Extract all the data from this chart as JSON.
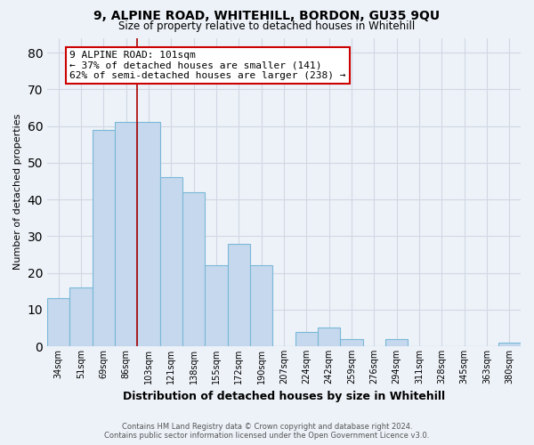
{
  "title": "9, ALPINE ROAD, WHITEHILL, BORDON, GU35 9QU",
  "subtitle": "Size of property relative to detached houses in Whitehill",
  "xlabel": "Distribution of detached houses by size in Whitehill",
  "ylabel": "Number of detached properties",
  "bin_labels": [
    "34sqm",
    "51sqm",
    "69sqm",
    "86sqm",
    "103sqm",
    "121sqm",
    "138sqm",
    "155sqm",
    "172sqm",
    "190sqm",
    "207sqm",
    "224sqm",
    "242sqm",
    "259sqm",
    "276sqm",
    "294sqm",
    "311sqm",
    "328sqm",
    "345sqm",
    "363sqm",
    "380sqm"
  ],
  "bar_values": [
    13,
    16,
    59,
    61,
    61,
    46,
    42,
    22,
    28,
    22,
    0,
    4,
    5,
    2,
    0,
    2,
    0,
    0,
    0,
    0,
    1
  ],
  "bar_color": "#c5d8ed",
  "bar_edge_color": "#7ab8d8",
  "vline_x_index": 4,
  "vline_color": "#aa0000",
  "annotation_text": "9 ALPINE ROAD: 101sqm\n← 37% of detached houses are smaller (141)\n62% of semi-detached houses are larger (238) →",
  "annotation_box_color": "#ffffff",
  "annotation_box_edge": "#cc0000",
  "ylim": [
    0,
    84
  ],
  "yticks": [
    0,
    10,
    20,
    30,
    40,
    50,
    60,
    70,
    80
  ],
  "grid_color": "#d0d8e4",
  "bg_color": "#edf2f8",
  "footer1": "Contains HM Land Registry data © Crown copyright and database right 2024.",
  "footer2": "Contains public sector information licensed under the Open Government Licence v3.0."
}
